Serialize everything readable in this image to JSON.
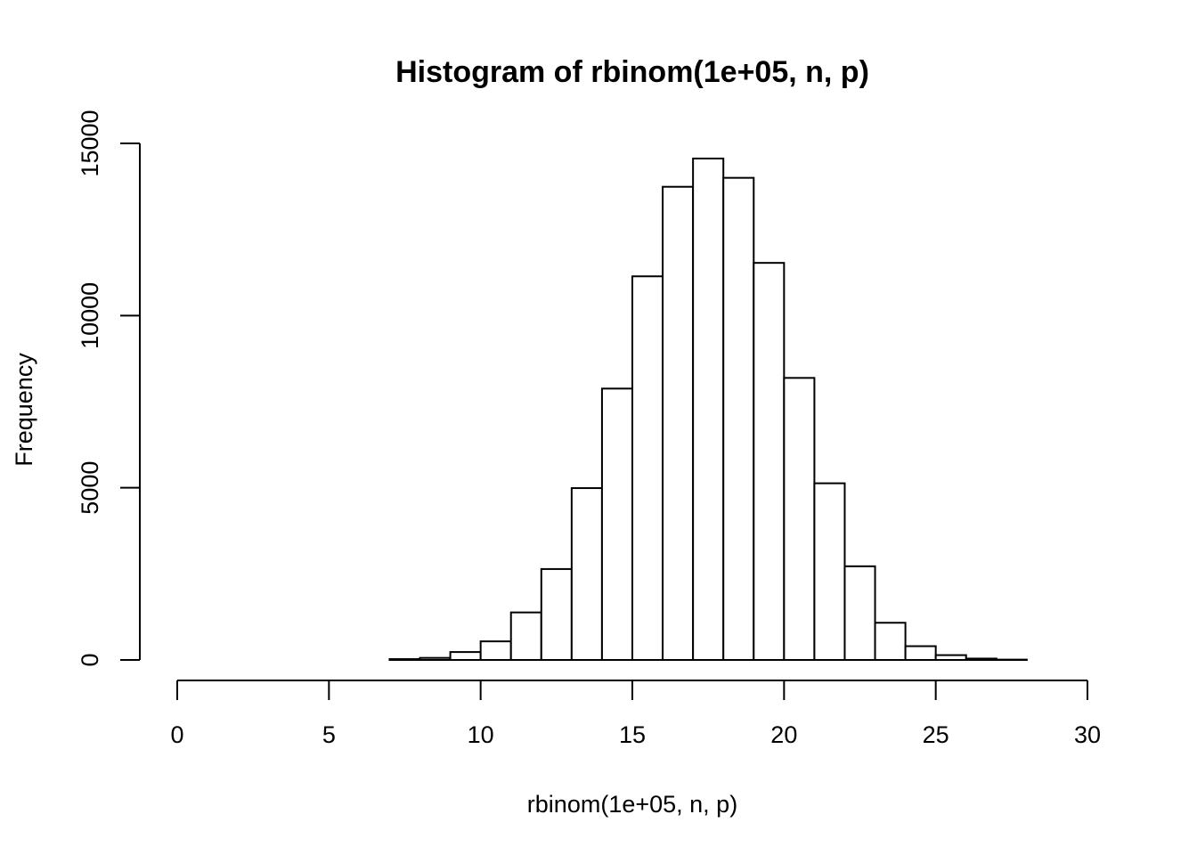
{
  "chart_data": {
    "type": "bar",
    "title": "Histogram of rbinom(1e+05, n, p)",
    "xlabel": "rbinom(1e+05, n, p)",
    "ylabel": "Frequency",
    "xlim": [
      0,
      30
    ],
    "ylim": [
      0,
      15000
    ],
    "x_ticks": [
      0,
      5,
      10,
      15,
      20,
      25,
      30
    ],
    "y_ticks": [
      0,
      5000,
      10000,
      15000
    ],
    "bins": [
      [
        0,
        1,
        0
      ],
      [
        1,
        2,
        0
      ],
      [
        2,
        3,
        0
      ],
      [
        3,
        4,
        0
      ],
      [
        4,
        5,
        0
      ],
      [
        5,
        6,
        0
      ],
      [
        6,
        7,
        0
      ],
      [
        7,
        8,
        25
      ],
      [
        8,
        9,
        60
      ],
      [
        9,
        10,
        230
      ],
      [
        10,
        11,
        540
      ],
      [
        11,
        12,
        1380
      ],
      [
        12,
        13,
        2640
      ],
      [
        13,
        14,
        4990
      ],
      [
        14,
        15,
        7880
      ],
      [
        15,
        16,
        11140
      ],
      [
        16,
        17,
        13740
      ],
      [
        17,
        18,
        14560
      ],
      [
        18,
        19,
        14000
      ],
      [
        19,
        20,
        11530
      ],
      [
        20,
        21,
        8190
      ],
      [
        21,
        22,
        5130
      ],
      [
        22,
        23,
        2720
      ],
      [
        23,
        24,
        1080
      ],
      [
        24,
        25,
        400
      ],
      [
        25,
        26,
        140
      ],
      [
        26,
        27,
        40
      ],
      [
        27,
        28,
        10
      ],
      [
        28,
        29,
        0
      ],
      [
        29,
        30,
        0
      ]
    ],
    "grid": false,
    "colors": {
      "fill": "#ffffff",
      "stroke": "#000000"
    }
  }
}
